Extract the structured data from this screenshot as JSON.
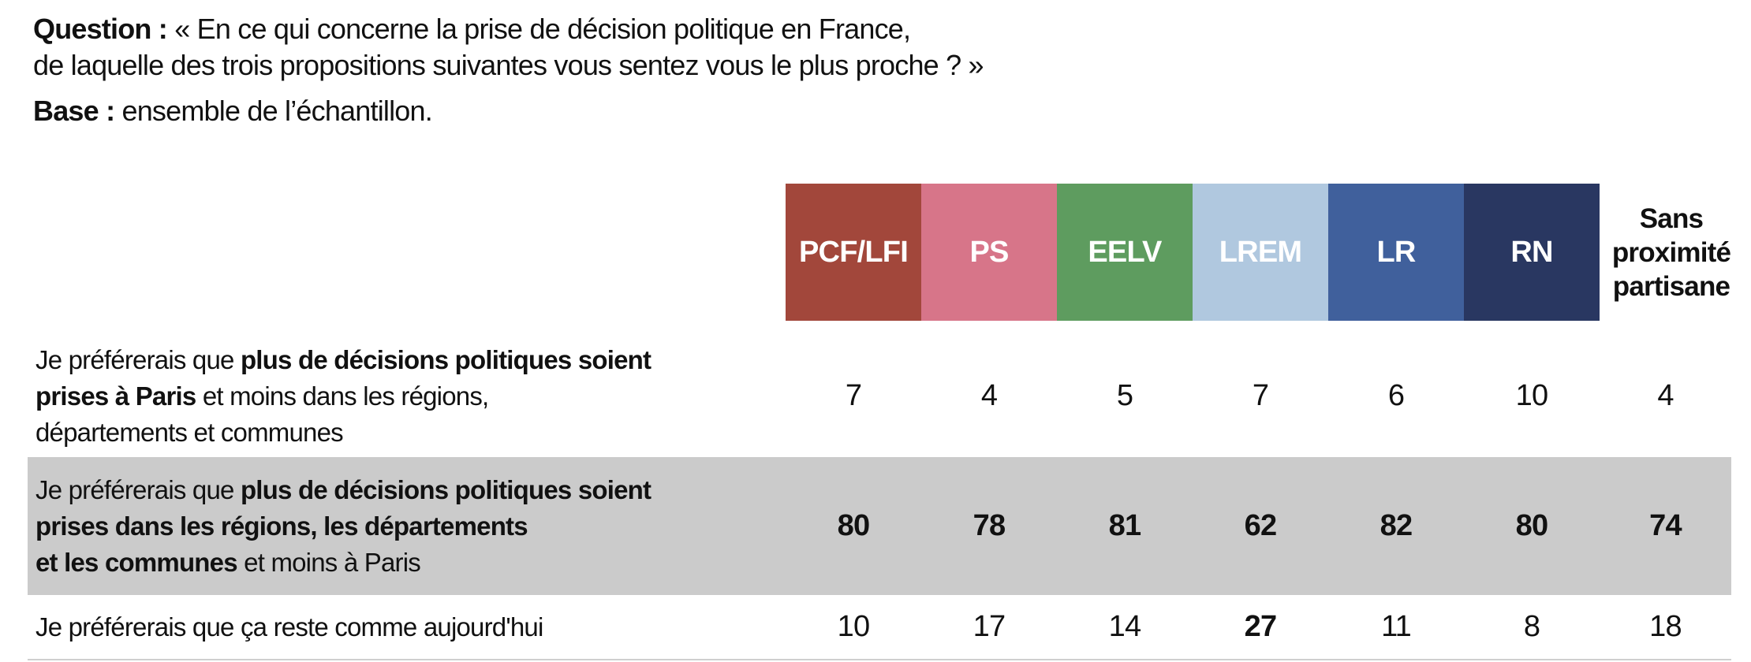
{
  "header": {
    "question_label": "Question :",
    "question_line1": "« En ce qui concerne la prise de décision politique en France,",
    "question_line2": "de laquelle des trois propositions suivantes vous sentez vous le plus proche ? »",
    "base_label": "Base :",
    "base_text": "ensemble de l’échantillon."
  },
  "table": {
    "shaded_bg": "#CBCBCB",
    "party_columns": [
      {
        "label": "PCF/LFI",
        "bg": "#A2473B"
      },
      {
        "label": "PS",
        "bg": "#D77589"
      },
      {
        "label": "EELV",
        "bg": "#5E9C5F"
      },
      {
        "label": "LREM",
        "bg": "#B0C8DF"
      },
      {
        "label": "LR",
        "bg": "#40609C"
      },
      {
        "label": "RN",
        "bg": "#293761"
      }
    ],
    "last_column_label": "Sans proximité partisane",
    "rows": [
      {
        "shaded": false,
        "lines": [
          [
            {
              "t": "Je préférerais que ",
              "b": 0
            },
            {
              "t": "plus de décisions politiques soient",
              "b": 1
            }
          ],
          [
            {
              "t": "prises à Paris",
              "b": 1
            },
            {
              "t": " et moins dans les régions,",
              "b": 0
            }
          ],
          [
            {
              "t": "départements et communes",
              "b": 0
            }
          ]
        ],
        "values": [
          {
            "v": "7",
            "b": 0
          },
          {
            "v": "4",
            "b": 0
          },
          {
            "v": "5",
            "b": 0
          },
          {
            "v": "7",
            "b": 0
          },
          {
            "v": "6",
            "b": 0
          },
          {
            "v": "10",
            "b": 0
          },
          {
            "v": "4",
            "b": 0
          }
        ]
      },
      {
        "shaded": true,
        "lines": [
          [
            {
              "t": "Je préférerais que ",
              "b": 0
            },
            {
              "t": "plus de décisions politiques soient",
              "b": 1
            }
          ],
          [
            {
              "t": "prises dans les régions, les départements",
              "b": 1
            }
          ],
          [
            {
              "t": "et les communes",
              "b": 1
            },
            {
              "t": " et moins à Paris",
              "b": 0
            }
          ]
        ],
        "values": [
          {
            "v": "80",
            "b": 1
          },
          {
            "v": "78",
            "b": 1
          },
          {
            "v": "81",
            "b": 1
          },
          {
            "v": "62",
            "b": 1
          },
          {
            "v": "82",
            "b": 1
          },
          {
            "v": "80",
            "b": 1
          },
          {
            "v": "74",
            "b": 1
          }
        ]
      },
      {
        "shaded": false,
        "lines": [
          [
            {
              "t": "Je préférerais que ça reste comme aujourd'hui",
              "b": 0
            }
          ]
        ],
        "values": [
          {
            "v": "10",
            "b": 0
          },
          {
            "v": "17",
            "b": 0
          },
          {
            "v": "14",
            "b": 0
          },
          {
            "v": "27",
            "b": 1
          },
          {
            "v": "11",
            "b": 0
          },
          {
            "v": "8",
            "b": 0
          },
          {
            "v": "18",
            "b": 0
          }
        ]
      }
    ]
  },
  "chart_data": {
    "type": "table",
    "title": "En ce qui concerne la prise de décision politique en France, de laquelle des trois propositions suivantes vous sentez vous le plus proche ?",
    "base": "ensemble de l’échantillon",
    "columns": [
      "PCF/LFI",
      "PS",
      "EELV",
      "LREM",
      "LR",
      "RN",
      "Sans proximité partisane"
    ],
    "column_colors": [
      "#A2473B",
      "#D77589",
      "#5E9C5F",
      "#B0C8DF",
      "#40609C",
      "#293761",
      null
    ],
    "rows": [
      {
        "label": "Je préférerais que plus de décisions politiques soient prises à Paris et moins dans les régions, départements et communes",
        "values": [
          7,
          4,
          5,
          7,
          6,
          10,
          4
        ]
      },
      {
        "label": "Je préférerais que plus de décisions politiques soient prises dans les régions, les départements et les communes et moins à Paris",
        "values": [
          80,
          78,
          81,
          62,
          82,
          80,
          74
        ]
      },
      {
        "label": "Je préférerais que ça reste comme aujourd'hui",
        "values": [
          10,
          17,
          14,
          27,
          11,
          8,
          18
        ]
      }
    ]
  }
}
